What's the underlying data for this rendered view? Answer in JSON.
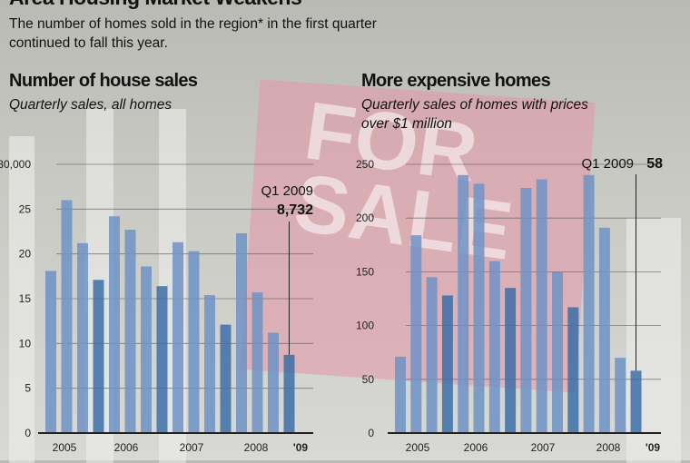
{
  "title": "Area Housing Market Weakens",
  "intro": "The number of homes sold in the region* in the first quarter continued to fall this year.",
  "sign_text": "FOR SALE BY OWNER",
  "colors": {
    "bar": "#6f93c4",
    "bar_q1": "#3d6fa8",
    "grid": "#555555"
  },
  "chart_data": [
    {
      "type": "bar",
      "title": "Number of house sales",
      "subtitle": "Quarterly sales, all homes",
      "ylim": [
        0,
        30000
      ],
      "yticks": [
        "0",
        "5",
        "10",
        "15",
        "20",
        "25",
        "30,000"
      ],
      "year_labels": [
        "2005",
        "2006",
        "2007",
        "2008",
        "'09"
      ],
      "values": [
        18100,
        26000,
        21200,
        17100,
        24200,
        22700,
        18600,
        16400,
        21300,
        20300,
        15400,
        12100,
        22300,
        15700,
        11200,
        8732
      ],
      "annotation": {
        "label": "Q1 2009",
        "value": "8,732"
      },
      "grid": true
    },
    {
      "type": "bar",
      "title": "More expensive homes",
      "subtitle": "Quarterly sales of homes with prices over $1 million",
      "ylim": [
        0,
        250
      ],
      "yticks": [
        "0",
        "50",
        "100",
        "150",
        "200",
        "250"
      ],
      "year_labels": [
        "2005",
        "2006",
        "2007",
        "2008",
        "'09"
      ],
      "values": [
        71,
        184,
        145,
        128,
        240,
        232,
        160,
        135,
        228,
        236,
        150,
        117,
        240,
        191,
        70,
        58
      ],
      "annotation": {
        "label": "Q1 2009",
        "value": "58"
      },
      "grid": true
    }
  ]
}
